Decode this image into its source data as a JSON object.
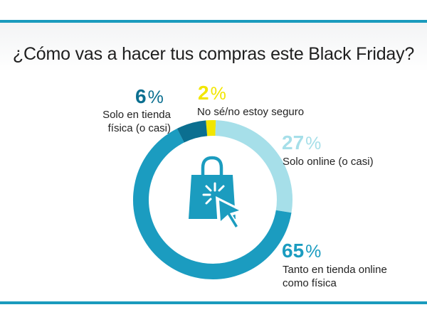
{
  "title": "¿Cómo vas a hacer tus compras este Black Friday?",
  "colors": {
    "rule": "#1a9bbd",
    "icon": "#1b9cbf"
  },
  "icon": "shopping-bag-cursor-icon",
  "chart_data": {
    "type": "pie",
    "title": "¿Cómo vas a hacer tus compras este Black Friday?",
    "unit": "%",
    "slices": [
      {
        "label": "No sé/no estoy seguro",
        "value": 2,
        "color": "#f2e600"
      },
      {
        "label": "Solo online (o casi)",
        "value": 27,
        "color": "#a6dfe9"
      },
      {
        "label": "Tanto en tienda online como física",
        "value": 65,
        "color": "#1b9cc0"
      },
      {
        "label": "Solo en tienda física (o casi)",
        "value": 6,
        "color": "#0b6f90"
      }
    ]
  }
}
